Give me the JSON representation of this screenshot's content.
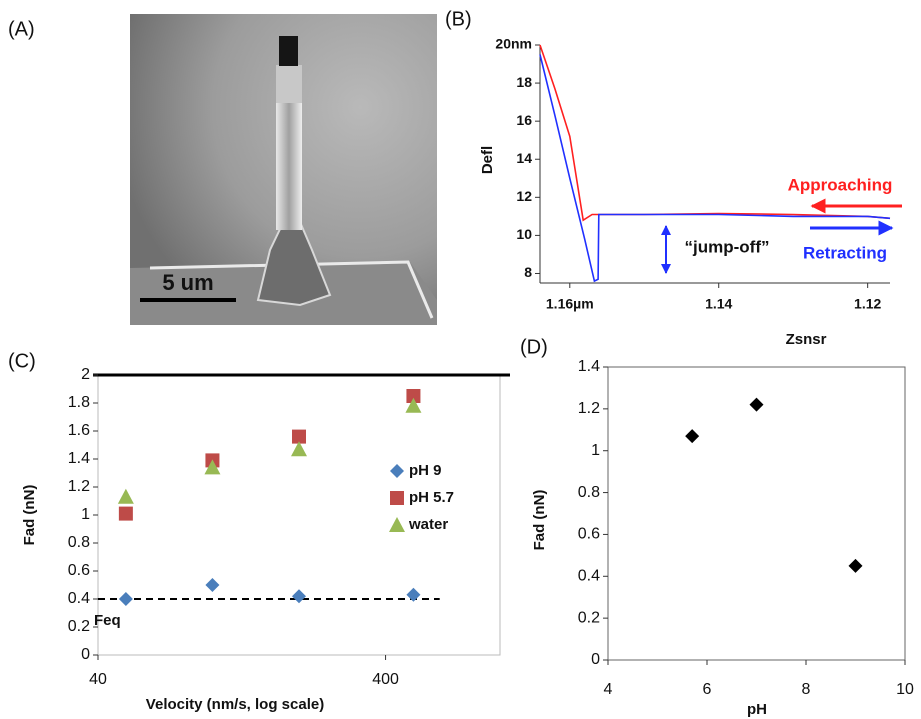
{
  "panel_a": {
    "panel_label": "(A)",
    "scale_bar": "5 um"
  },
  "chart_data": [
    {
      "type": "line",
      "panel_label": "(B)",
      "xlabel": "Zsnsr",
      "ylabel": "Defl",
      "xlim": [
        1.164,
        1.117
      ],
      "ylim": [
        7.5,
        20
      ],
      "xticks": [
        {
          "value": 1.16,
          "label": "1.16µm"
        },
        1.14,
        1.12
      ],
      "yticks": [
        8,
        10,
        12,
        14,
        16,
        18,
        {
          "value": 20,
          "label": "20nm"
        }
      ],
      "annotation": "“jump-off”",
      "series": [
        {
          "name": "Approaching",
          "color": "#ff2020",
          "x": [
            1.164,
            1.162,
            1.16,
            1.1582,
            1.157,
            1.15,
            1.14,
            1.13,
            1.12,
            1.117
          ],
          "values": [
            20,
            17.7,
            15.2,
            10.8,
            11.1,
            11.1,
            11.15,
            11.1,
            11.0,
            10.9
          ]
        },
        {
          "name": "Retracting",
          "color": "#2030ff",
          "x": [
            1.164,
            1.162,
            1.16,
            1.158,
            1.1567,
            1.1562,
            1.1561,
            1.15,
            1.14,
            1.13,
            1.12,
            1.117
          ],
          "values": [
            19.5,
            16.3,
            13.0,
            9.8,
            7.6,
            7.7,
            11.1,
            11.1,
            11.1,
            11.0,
            11.0,
            10.9
          ]
        }
      ]
    },
    {
      "type": "scatter",
      "panel_label": "(C)",
      "xlabel": "Velocity (nm/s, log scale)",
      "ylabel": "Fad (nN)",
      "log_x": true,
      "xlim": [
        40,
        1000
      ],
      "ylim": [
        0,
        2
      ],
      "xticks": [
        40,
        400
      ],
      "yticks": [
        0,
        0.2,
        0.4,
        0.6,
        0.8,
        1,
        1.2,
        1.4,
        1.6,
        1.8,
        2
      ],
      "legend": "right",
      "reference_line": {
        "value": 0.4,
        "label": "Feq"
      },
      "x": [
        50,
        100,
        200,
        500
      ],
      "series": [
        {
          "name": "pH 9",
          "color": "#4a7ebb",
          "marker": "diamond",
          "values": [
            0.4,
            0.5,
            0.42,
            0.43
          ]
        },
        {
          "name": "pH 5.7",
          "color": "#be4b48",
          "marker": "square",
          "values": [
            1.01,
            1.39,
            1.56,
            1.85
          ]
        },
        {
          "name": "water",
          "color": "#98b954",
          "marker": "triangle",
          "values": [
            1.13,
            1.34,
            1.47,
            1.78
          ]
        }
      ]
    },
    {
      "type": "scatter",
      "panel_label": "(D)",
      "xlabel": "pH",
      "ylabel": "Fad (nN)",
      "xlim": [
        4,
        10
      ],
      "ylim": [
        0,
        1.4
      ],
      "xticks": [
        4,
        6,
        8,
        10
      ],
      "yticks": [
        0,
        0.2,
        0.4,
        0.6,
        0.8,
        1,
        1.2,
        1.4
      ],
      "x": [
        5.7,
        7,
        9
      ],
      "series": [
        {
          "color": "#000000",
          "marker": "diamond",
          "values": [
            1.07,
            1.22,
            0.45
          ]
        }
      ]
    }
  ]
}
